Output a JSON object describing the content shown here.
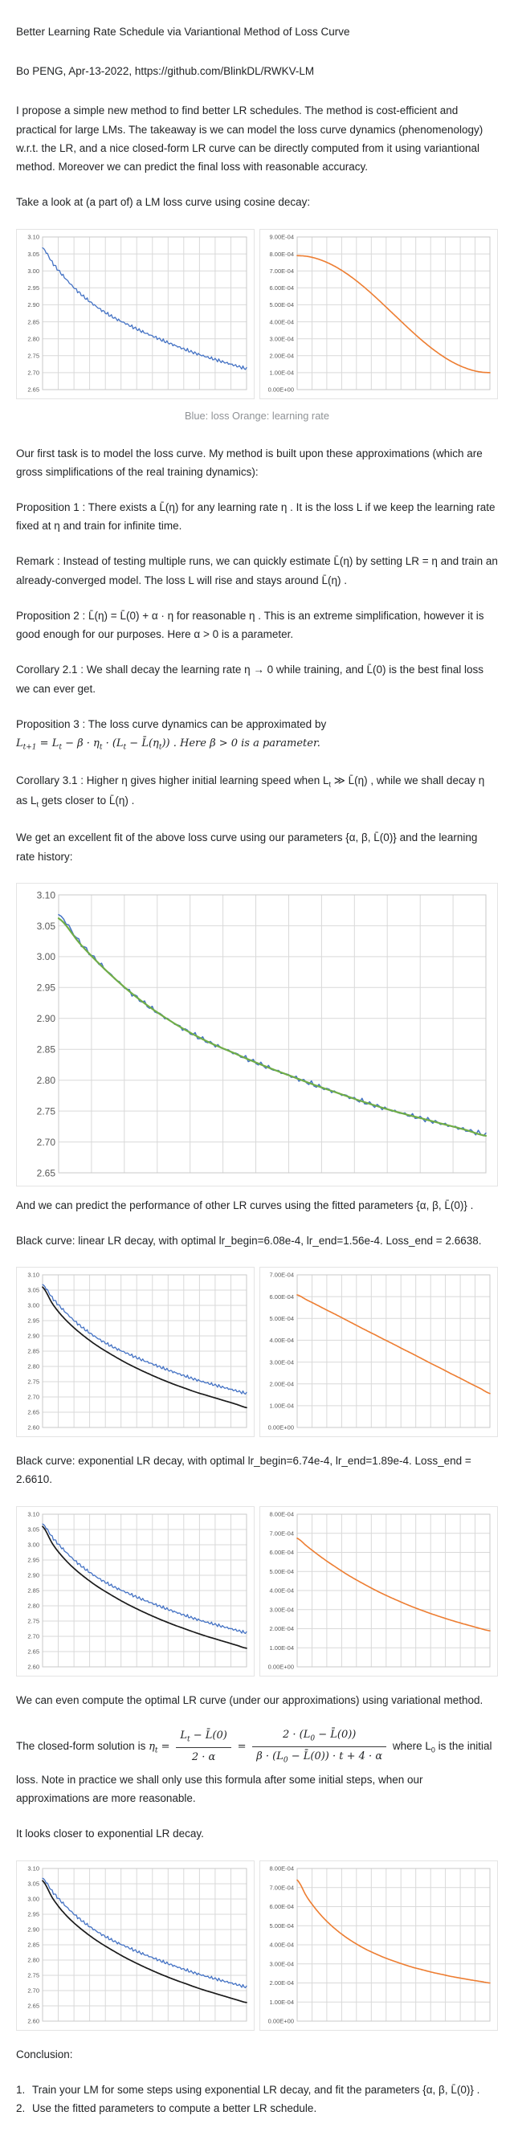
{
  "doc": {
    "title": "Better Learning Rate Schedule via Variantional Method of Loss Curve",
    "byline": "Bo PENG, Apr-13-2022, https://github.com/BlinkDL/RWKV-LM",
    "p_intro": "I propose a simple new method to find better LR schedules. The method is cost-efficient and practical for large LMs. The takeaway is we can model the loss curve dynamics (phenomenology) w.r.t. the LR, and a nice closed-form LR curve can be directly computed from it using variantional method. Moreover we can predict the final loss with reasonable accuracy.",
    "p_take_look": "Take a look at (a part of) a LM loss curve using cosine decay:",
    "caption1": "Blue: loss Orange: learning rate",
    "p_first_task": "Our first task is to model the loss curve. My method is built upon these approximations (which are gross simplifications of the real training dynamics):",
    "prop1": "Proposition 1 : There exists a L̄(η) for any learning rate η . It is the loss L if we keep the learning rate fixed at η and train for infinite time.",
    "remark": "Remark : Instead of testing multiple runs, we can quickly estimate L̄(η) by setting LR = η and train an already-converged model. The loss L will rise and stays around L̄(η) .",
    "prop2": "Proposition 2 : L̄(η) = L̄(0) + α · η for reasonable η . This is an extreme simplification, however it is good enough for our purposes. Here α > 0 is a parameter.",
    "cor21": "Corollary 2.1 : We shall decay the learning rate η → 0 while training, and L̄(0) is the best final loss we can ever get.",
    "prop3_intro": "Proposition 3 : The loss curve dynamics can be approximated by",
    "prop3_formula": "L_{t+1} = L_{t} − β · η_{t} · (L_{t} − L̄(η_{t})) . Here β > 0 is a parameter.",
    "cor31": "Corollary 3.1 : Higher η gives higher initial learning speed when L_{t} ≫ L̄(η) , while we shall decay η as L_{t} gets closer to L̄(η) .",
    "p_fit": "We get an excellent fit of the above loss curve using our parameters {α, β, L̄(0)} and the learning rate history:",
    "p_predict": "And we can predict the performance of other LR curves using the fitted parameters {α, β, L̄(0)} .",
    "p_black_linear": "Black curve: linear LR decay, with optimal lr_begin=6.08e-4, lr_end=1.56e-4. Loss_end = 2.6638.",
    "p_black_exp": "Black curve: exponential LR decay, with optimal lr_begin=6.74e-4, lr_end=1.89e-4. Loss_end = 2.6610.",
    "p_variational": "We can even compute the optimal LR curve (under our approximations) using variational method.",
    "formula": {
      "prefix": "The closed-form solution is",
      "lhs": "η_{t} =",
      "frac1_num": "L_{t} − L̄(0)",
      "frac1_den": "2 · α",
      "equals": "=",
      "frac2_num": "2 · (L_{0} − L̄(0))",
      "frac2_den": "β · (L_{0} − L̄(0)) · t + 4 · α",
      "suffix": "where L_{0} is the initial"
    },
    "p_formula_cont": "loss. Note in practice we shall only use this formula after some initial steps, when our approximations are more reasonable.",
    "p_closer": "It looks closer to exponential LR decay.",
    "conclusion_title": "Conclusion:",
    "conclusion_items": [
      {
        "num": "1.",
        "text": "Train your LM for some steps using exponential LR decay, and fit the parameters {α, β, L̄(0)} ."
      },
      {
        "num": "2.",
        "text": "Use the fitted parameters to compute a better LR schedule."
      }
    ]
  },
  "colors": {
    "loss_blue": "#4472c4",
    "lr_orange": "#ed7d31",
    "fit_green": "#70ad47",
    "pred_black": "#1a1a1a",
    "grid": "#d9d9d9",
    "plot_border": "#c9c9c9",
    "tick_label": "#595959"
  },
  "chart_data": [
    {
      "id": "loss_cosine",
      "type": "line",
      "title": "LM loss, cosine LR decay",
      "ylim": [
        2.65,
        3.1
      ],
      "ystep": 0.05,
      "yformat": "fixed2",
      "x_divisions": 13,
      "grid": true,
      "legend": "none",
      "series": [
        {
          "name": "loss (actual)",
          "color": "#4472c4",
          "width": 1.3,
          "noise": 0.006,
          "values": [
            3.068,
            3.023,
            2.986,
            2.953,
            2.925,
            2.901,
            2.88,
            2.862,
            2.847,
            2.832,
            2.818,
            2.805,
            2.792,
            2.78,
            2.768,
            2.757,
            2.747,
            2.738,
            2.729,
            2.72,
            2.712
          ]
        }
      ]
    },
    {
      "id": "lr_cosine",
      "type": "line",
      "title": "learning rate, cosine decay",
      "ylim": [
        0,
        0.0009
      ],
      "ystep": 0.0001,
      "yformat": "sci",
      "x_divisions": 13,
      "grid": true,
      "legend": "none",
      "series": [
        {
          "name": "learning rate",
          "color": "#ed7d31",
          "width": 1.6,
          "noise": 0,
          "values": [
            0.00079,
            0.000786,
            0.000773,
            0.000752,
            0.000724,
            0.000689,
            0.000648,
            0.000602,
            0.000552,
            0.000499,
            0.000445,
            0.000391,
            0.000338,
            0.000288,
            0.000242,
            0.000201,
            0.000166,
            0.000138,
            0.000117,
            0.000104,
            0.0001
          ]
        }
      ]
    },
    {
      "id": "loss_fit_large",
      "type": "line",
      "title": "loss curve fit with {α, β, L̄(0)}",
      "ylim": [
        2.65,
        3.1
      ],
      "ystep": 0.05,
      "yformat": "fixed2",
      "x_divisions": 13,
      "grid": true,
      "legend": "none",
      "series": [
        {
          "name": "loss (actual)",
          "color": "#4472c4",
          "width": 1.5,
          "noise": 0.005,
          "values": [
            3.068,
            3.023,
            2.986,
            2.953,
            2.925,
            2.901,
            2.88,
            2.862,
            2.847,
            2.832,
            2.818,
            2.805,
            2.792,
            2.78,
            2.768,
            2.757,
            2.747,
            2.738,
            2.729,
            2.72,
            2.712
          ]
        },
        {
          "name": "fitted model",
          "color": "#70ad47",
          "width": 2.2,
          "noise": 0,
          "values": [
            3.062,
            3.021,
            2.985,
            2.953,
            2.925,
            2.901,
            2.88,
            2.862,
            2.847,
            2.832,
            2.818,
            2.805,
            2.792,
            2.78,
            2.768,
            2.757,
            2.747,
            2.738,
            2.729,
            2.72,
            2.71
          ]
        }
      ]
    },
    {
      "id": "loss_linear_pred",
      "type": "line",
      "title": "actual loss vs predicted loss for linear LR decay",
      "ylim": [
        2.6,
        3.1
      ],
      "ystep": 0.05,
      "yformat": "fixed2",
      "x_divisions": 13,
      "grid": true,
      "legend": "none",
      "series": [
        {
          "name": "loss (actual, cosine)",
          "color": "#4472c4",
          "width": 1.3,
          "noise": 0.006,
          "values": [
            3.068,
            3.023,
            2.986,
            2.953,
            2.925,
            2.901,
            2.88,
            2.862,
            2.847,
            2.832,
            2.818,
            2.805,
            2.792,
            2.78,
            2.768,
            2.757,
            2.747,
            2.738,
            2.729,
            2.72,
            2.712
          ]
        },
        {
          "name": "predicted loss, linear LR decay, Loss_end = 2.6638",
          "color": "#1a1a1a",
          "width": 1.7,
          "noise": 0,
          "values": [
            3.06,
            3.004,
            2.962,
            2.929,
            2.901,
            2.876,
            2.854,
            2.834,
            2.815,
            2.798,
            2.782,
            2.767,
            2.753,
            2.74,
            2.728,
            2.716,
            2.706,
            2.696,
            2.686,
            2.676,
            2.665
          ]
        }
      ]
    },
    {
      "id": "lr_linear",
      "type": "line",
      "title": "linear LR decay 6.08e-4 → 1.56e-4",
      "ylim": [
        0,
        0.0007
      ],
      "ystep": 0.0001,
      "yformat": "sci",
      "x_divisions": 13,
      "grid": true,
      "legend": "none",
      "series": [
        {
          "name": "learning rate",
          "color": "#ed7d31",
          "width": 1.6,
          "noise": 0,
          "values": [
            0.000608,
            0.000585,
            0.000563,
            0.00054,
            0.000518,
            0.000495,
            0.000472,
            0.000449,
            0.000427,
            0.000404,
            0.000382,
            0.000359,
            0.000337,
            0.000314,
            0.000291,
            0.000269,
            0.000246,
            0.000224,
            0.000201,
            0.000179,
            0.000156
          ]
        }
      ]
    },
    {
      "id": "loss_exp_pred",
      "type": "line",
      "title": "actual loss vs predicted loss for exponential LR decay",
      "ylim": [
        2.6,
        3.1
      ],
      "ystep": 0.05,
      "yformat": "fixed2",
      "x_divisions": 13,
      "grid": true,
      "legend": "none",
      "series": [
        {
          "name": "loss (actual, cosine)",
          "color": "#4472c4",
          "width": 1.3,
          "noise": 0.006,
          "values": [
            3.068,
            3.023,
            2.986,
            2.953,
            2.925,
            2.901,
            2.88,
            2.862,
            2.847,
            2.832,
            2.818,
            2.805,
            2.792,
            2.78,
            2.768,
            2.757,
            2.747,
            2.738,
            2.729,
            2.72,
            2.712
          ]
        },
        {
          "name": "predicted loss, exponential LR decay, Loss_end = 2.6610",
          "color": "#1a1a1a",
          "width": 1.7,
          "noise": 0,
          "values": [
            3.06,
            3.002,
            2.959,
            2.925,
            2.897,
            2.872,
            2.85,
            2.83,
            2.811,
            2.794,
            2.778,
            2.763,
            2.749,
            2.736,
            2.724,
            2.712,
            2.701,
            2.691,
            2.681,
            2.671,
            2.661
          ]
        }
      ]
    },
    {
      "id": "lr_exp",
      "type": "line",
      "title": "exponential LR decay 6.74e-4 → 1.89e-4",
      "ylim": [
        0,
        0.0008
      ],
      "ystep": 0.0001,
      "yformat": "sci",
      "x_divisions": 13,
      "grid": true,
      "legend": "none",
      "series": [
        {
          "name": "learning rate",
          "color": "#ed7d31",
          "width": 1.6,
          "noise": 0,
          "values": [
            0.000674,
            0.000633,
            0.000594,
            0.000557,
            0.000523,
            0.00049,
            0.00046,
            0.000432,
            0.000405,
            0.00038,
            0.000357,
            0.000335,
            0.000314,
            0.000295,
            0.000277,
            0.00026,
            0.000244,
            0.000229,
            0.000215,
            0.000201,
            0.000189
          ]
        }
      ]
    },
    {
      "id": "loss_opt_pred",
      "type": "line",
      "title": "actual loss vs predicted loss for optimal (variational) LR curve",
      "ylim": [
        2.6,
        3.1
      ],
      "ystep": 0.05,
      "yformat": "fixed2",
      "x_divisions": 13,
      "grid": true,
      "legend": "none",
      "series": [
        {
          "name": "loss (actual, cosine)",
          "color": "#4472c4",
          "width": 1.3,
          "noise": 0.006,
          "values": [
            3.068,
            3.023,
            2.986,
            2.953,
            2.925,
            2.901,
            2.88,
            2.862,
            2.847,
            2.832,
            2.818,
            2.805,
            2.792,
            2.78,
            2.768,
            2.757,
            2.747,
            2.738,
            2.729,
            2.72,
            2.712
          ]
        },
        {
          "name": "predicted loss, optimal LR curve",
          "color": "#1a1a1a",
          "width": 1.7,
          "noise": 0,
          "values": [
            3.06,
            3.002,
            2.958,
            2.924,
            2.896,
            2.871,
            2.849,
            2.829,
            2.81,
            2.793,
            2.777,
            2.762,
            2.748,
            2.735,
            2.723,
            2.711,
            2.7,
            2.69,
            2.68,
            2.67,
            2.661
          ]
        }
      ]
    },
    {
      "id": "lr_opt",
      "type": "line",
      "title": "optimal LR curve (closed-form) 7.4e-4 → 2.0e-4",
      "ylim": [
        0,
        0.0008
      ],
      "ystep": 0.0001,
      "yformat": "sci",
      "x_divisions": 13,
      "grid": true,
      "legend": "none",
      "series": [
        {
          "name": "learning rate",
          "color": "#ed7d31",
          "width": 1.6,
          "noise": 0,
          "values": [
            0.00074,
            0.000652,
            0.000583,
            0.000527,
            0.000481,
            0.000442,
            0.000409,
            0.00038,
            0.000356,
            0.000334,
            0.000315,
            0.000298,
            0.000282,
            0.000269,
            0.000256,
            0.000245,
            0.000234,
            0.000225,
            0.000216,
            0.000208,
            0.0002
          ]
        }
      ]
    }
  ]
}
